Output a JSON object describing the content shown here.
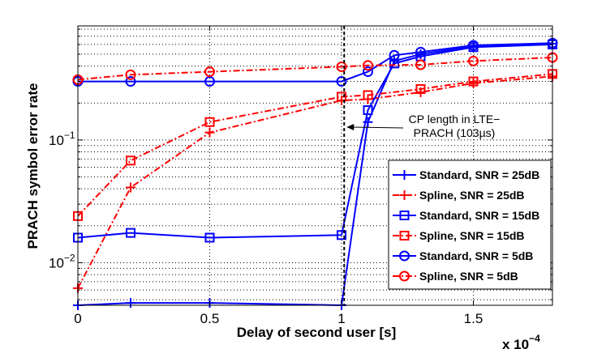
{
  "chart_data": {
    "type": "line",
    "ylabel": "PRACH symbol error rate",
    "xlabel": "Delay of second user [s]",
    "x_scale_label": "x 10",
    "x_scale_exponent": "−4",
    "xlim": [
      0,
      0.00018
    ],
    "ylim": [
      0.0045,
      0.85
    ],
    "yscale": "log",
    "x_ticks": [
      {
        "value": 0,
        "label": "0"
      },
      {
        "value": 5e-05,
        "label": "0.5"
      },
      {
        "value": 0.0001,
        "label": "1"
      },
      {
        "value": 0.00015,
        "label": "1.5"
      }
    ],
    "y_ticks": [
      {
        "value": 0.01,
        "base": "10",
        "exp": "−2"
      },
      {
        "value": 0.1,
        "base": "10",
        "exp": "−1"
      }
    ],
    "grid": true,
    "legend_position": "bottom-right",
    "annotation": {
      "lines": [
        "CP length in LTE−",
        "PRACH (103µs)"
      ],
      "x_value": 0.000101
    },
    "series": [
      {
        "name": "Standard, SNR = 25dB",
        "color": "#0000ff",
        "dash": "solid",
        "marker": "plus",
        "x": [
          0,
          2e-05,
          5e-05,
          0.0001,
          0.00011,
          0.00012,
          0.00013,
          0.00015,
          0.00018
        ],
        "y": [
          0.0045,
          0.0047,
          0.0047,
          0.0045,
          0.14,
          0.44,
          0.5,
          0.58,
          0.61
        ]
      },
      {
        "name": "Spline, SNR = 25dB",
        "color": "#ff0000",
        "dash": "dashdot",
        "marker": "plus",
        "x": [
          0,
          2e-05,
          5e-05,
          0.0001,
          0.00011,
          0.00013,
          0.00015,
          0.00018
        ],
        "y": [
          0.0062,
          0.041,
          0.115,
          0.21,
          0.215,
          0.245,
          0.29,
          0.33
        ]
      },
      {
        "name": "Standard, SNR = 15dB",
        "color": "#0000ff",
        "dash": "solid",
        "marker": "square",
        "x": [
          0,
          2e-05,
          5e-05,
          0.0001,
          0.00011,
          0.00012,
          0.00013,
          0.00015,
          0.00018
        ],
        "y": [
          0.016,
          0.0175,
          0.016,
          0.0168,
          0.175,
          0.42,
          0.48,
          0.57,
          0.6
        ]
      },
      {
        "name": "Spline, SNR = 15dB",
        "color": "#ff0000",
        "dash": "dashdot",
        "marker": "square",
        "x": [
          0,
          2e-05,
          5e-05,
          0.0001,
          0.00011,
          0.00013,
          0.00015,
          0.00018
        ],
        "y": [
          0.024,
          0.068,
          0.14,
          0.225,
          0.232,
          0.26,
          0.3,
          0.345
        ]
      },
      {
        "name": "Standard, SNR = 5dB",
        "color": "#0000ff",
        "dash": "solid",
        "marker": "circle",
        "x": [
          0,
          2e-05,
          5e-05,
          0.0001,
          0.00011,
          0.00012,
          0.00013,
          0.00015,
          0.00018
        ],
        "y": [
          0.3,
          0.3,
          0.3,
          0.3,
          0.36,
          0.49,
          0.52,
          0.59,
          0.615
        ]
      },
      {
        "name": "Spline, SNR = 5dB",
        "color": "#ff0000",
        "dash": "dashdot",
        "marker": "circle",
        "x": [
          0,
          2e-05,
          5e-05,
          0.0001,
          0.00011,
          0.00013,
          0.00015,
          0.00018
        ],
        "y": [
          0.31,
          0.34,
          0.36,
          0.395,
          0.405,
          0.41,
          0.44,
          0.47
        ]
      }
    ]
  }
}
